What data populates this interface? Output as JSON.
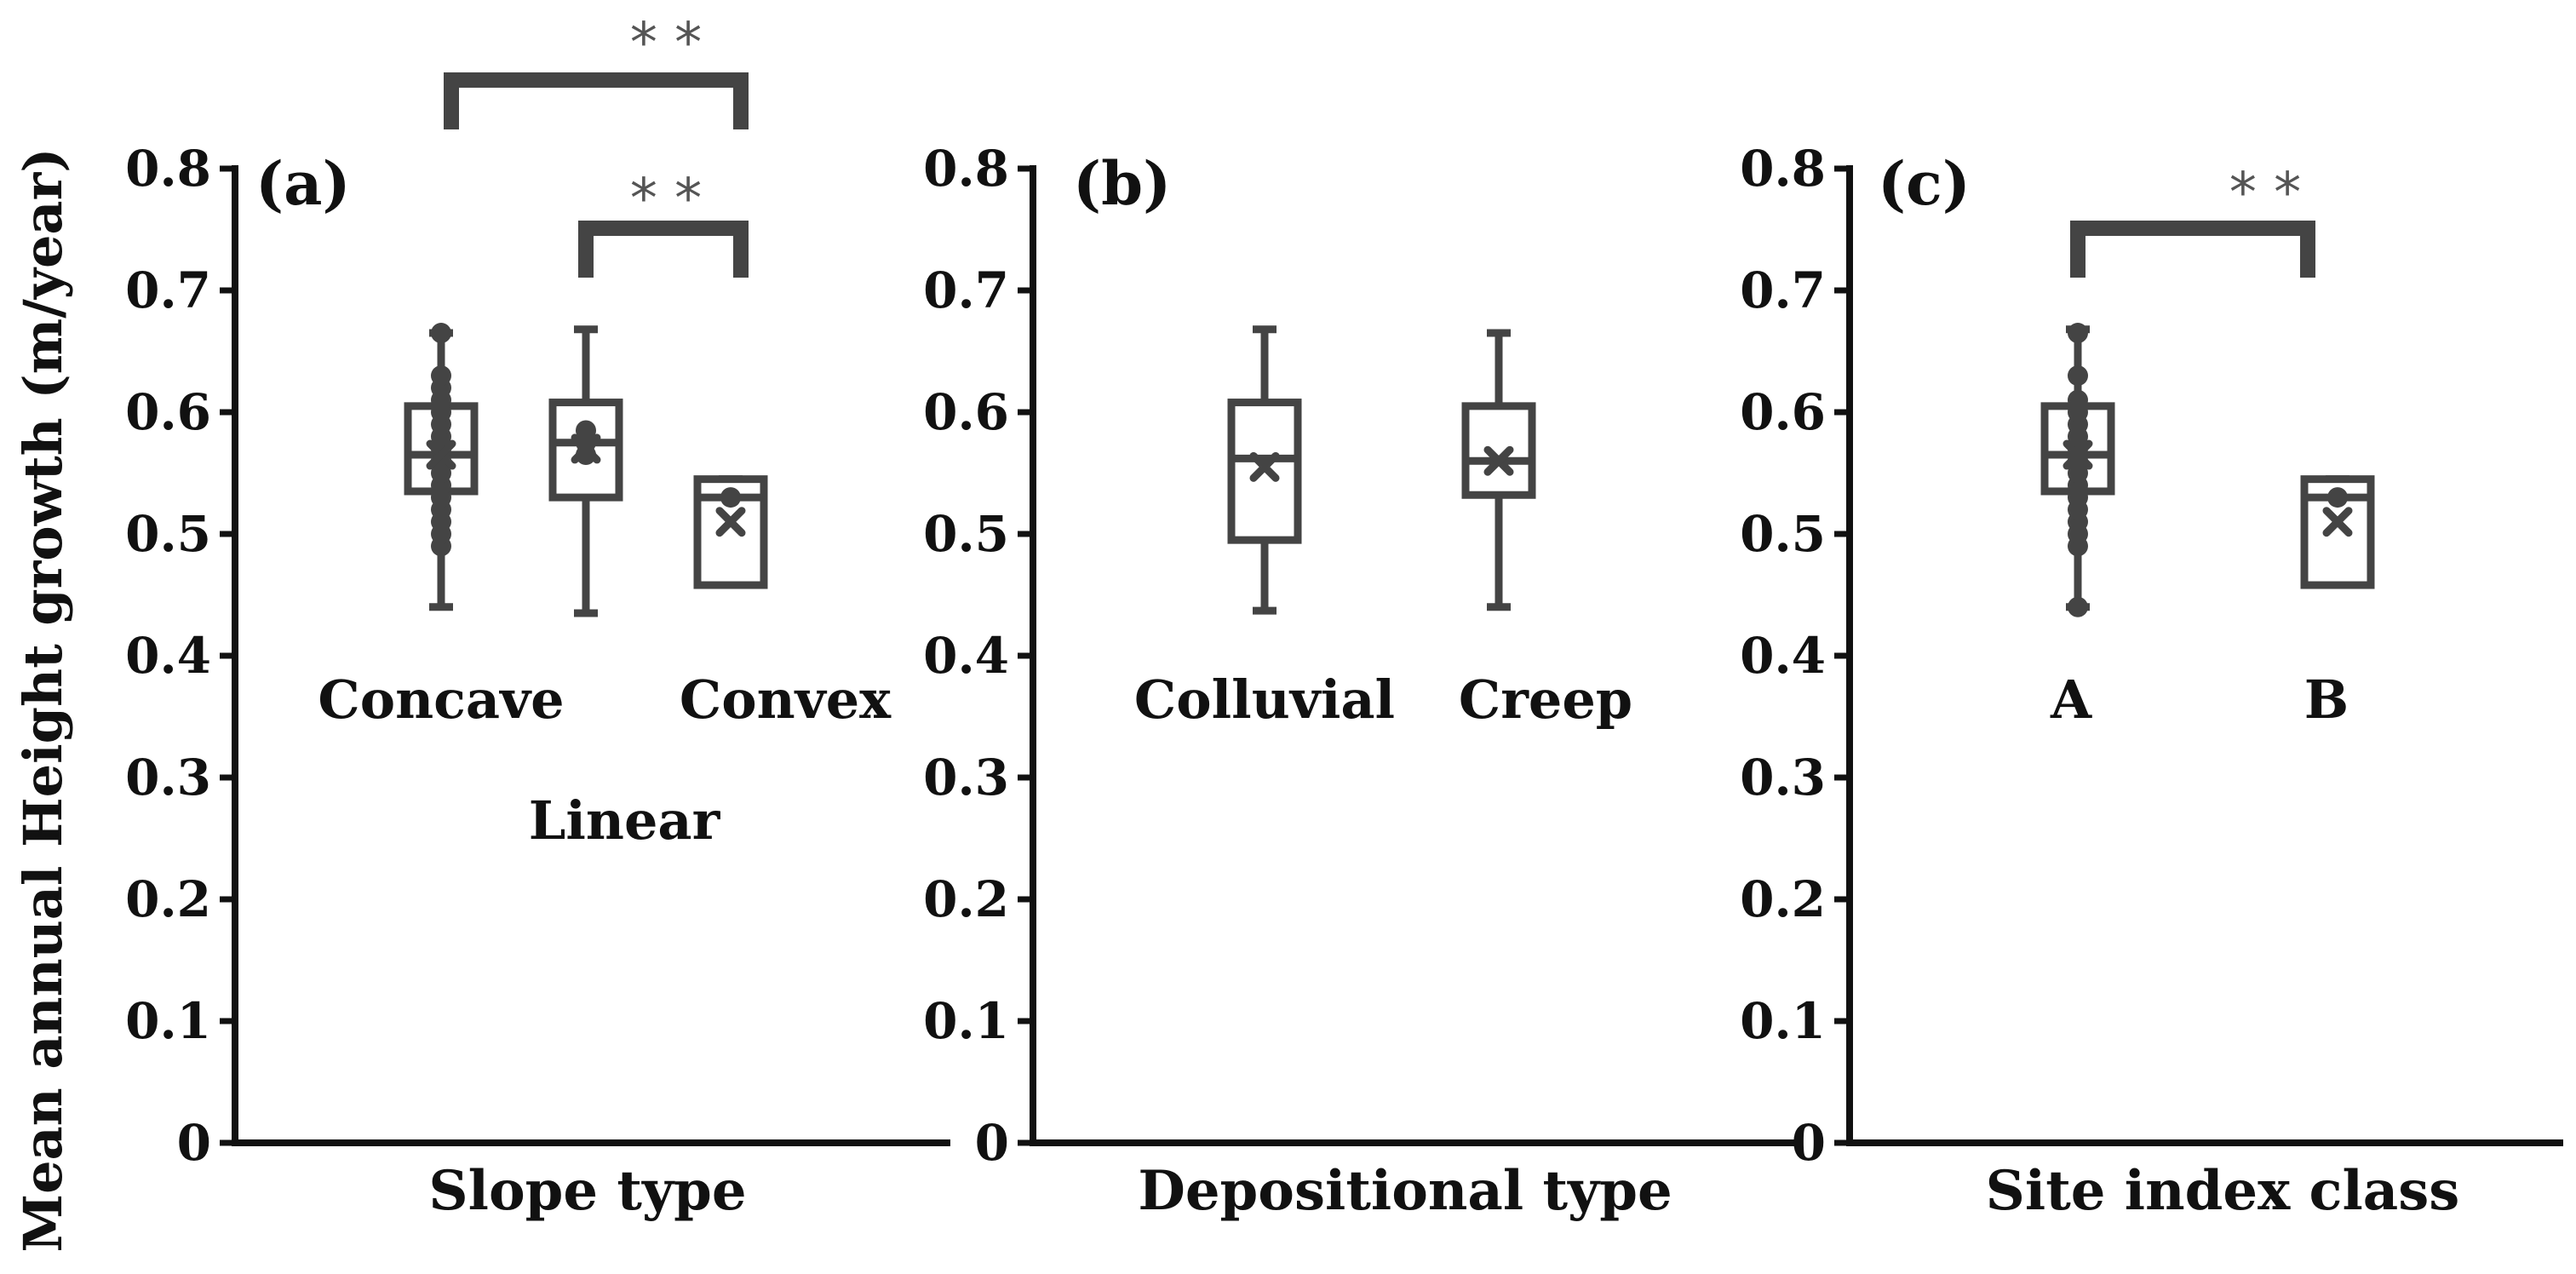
{
  "figure": {
    "ylabel": "Mean annual Height growth  (m/year)"
  },
  "colors": {
    "axis": "#111111",
    "box": "#444444",
    "sig_text": "#555555"
  },
  "chart_data": [
    {
      "type": "box",
      "panel": "(a)",
      "xlabel": "Slope type",
      "ylim": [
        0,
        0.8
      ],
      "yticks": [
        "0",
        "0.1",
        "0.2",
        "0.3",
        "0.4",
        "0.5",
        "0.6",
        "0.7",
        "0.8"
      ],
      "categories": [
        "Concave",
        "Linear",
        "Convex"
      ],
      "boxes": [
        {
          "category": "Concave",
          "whisker_low": 0.44,
          "q1": 0.535,
          "median": 0.565,
          "q3": 0.605,
          "whisker_high": 0.665,
          "mean": 0.565,
          "points": [
            0.49,
            0.5,
            0.51,
            0.52,
            0.53,
            0.54,
            0.55,
            0.56,
            0.57,
            0.58,
            0.59,
            0.6,
            0.61,
            0.62,
            0.63,
            0.665
          ]
        },
        {
          "category": "Linear",
          "whisker_low": 0.435,
          "q1": 0.53,
          "median": 0.575,
          "q3": 0.608,
          "whisker_high": 0.668,
          "mean": 0.57,
          "points": [
            0.565,
            0.575,
            0.585
          ]
        },
        {
          "category": "Convex",
          "whisker_low": 0.458,
          "q1": 0.458,
          "median": 0.53,
          "q3": 0.545,
          "whisker_high": 0.545,
          "mean": 0.51,
          "points": [
            0.53
          ]
        }
      ],
      "significance": [
        {
          "from": "Concave",
          "to": "Convex",
          "label": "* *"
        },
        {
          "from": "Linear",
          "to": "Convex",
          "label": "* *"
        }
      ]
    },
    {
      "type": "box",
      "panel": "(b)",
      "xlabel": "Depositional  type",
      "ylim": [
        0,
        0.8
      ],
      "yticks": [
        "0",
        "0.1",
        "0.2",
        "0.3",
        "0.4",
        "0.5",
        "0.6",
        "0.7",
        "0.8"
      ],
      "categories": [
        "Colluvial",
        "Creep"
      ],
      "boxes": [
        {
          "category": "Colluvial",
          "whisker_low": 0.437,
          "q1": 0.495,
          "median": 0.562,
          "q3": 0.608,
          "whisker_high": 0.668,
          "mean": 0.555,
          "points": []
        },
        {
          "category": "Creep",
          "whisker_low": 0.44,
          "q1": 0.532,
          "median": 0.56,
          "q3": 0.605,
          "whisker_high": 0.665,
          "mean": 0.56,
          "points": []
        }
      ],
      "significance": []
    },
    {
      "type": "box",
      "panel": "(c)",
      "xlabel": "Site index class",
      "ylim": [
        0,
        0.8
      ],
      "yticks": [
        "0",
        "0.1",
        "0.2",
        "0.3",
        "0.4",
        "0.5",
        "0.6",
        "0.7",
        "0.8"
      ],
      "categories": [
        "A",
        "B"
      ],
      "boxes": [
        {
          "category": "A",
          "whisker_low": 0.44,
          "q1": 0.535,
          "median": 0.565,
          "q3": 0.605,
          "whisker_high": 0.668,
          "mean": 0.565,
          "points": [
            0.44,
            0.49,
            0.5,
            0.51,
            0.52,
            0.53,
            0.54,
            0.55,
            0.56,
            0.57,
            0.58,
            0.59,
            0.6,
            0.61,
            0.63,
            0.665
          ]
        },
        {
          "category": "B",
          "whisker_low": 0.458,
          "q1": 0.458,
          "median": 0.53,
          "q3": 0.545,
          "whisker_high": 0.545,
          "mean": 0.51,
          "points": [
            0.53
          ]
        }
      ],
      "significance": [
        {
          "from": "A",
          "to": "B",
          "label": "* *"
        }
      ]
    }
  ]
}
